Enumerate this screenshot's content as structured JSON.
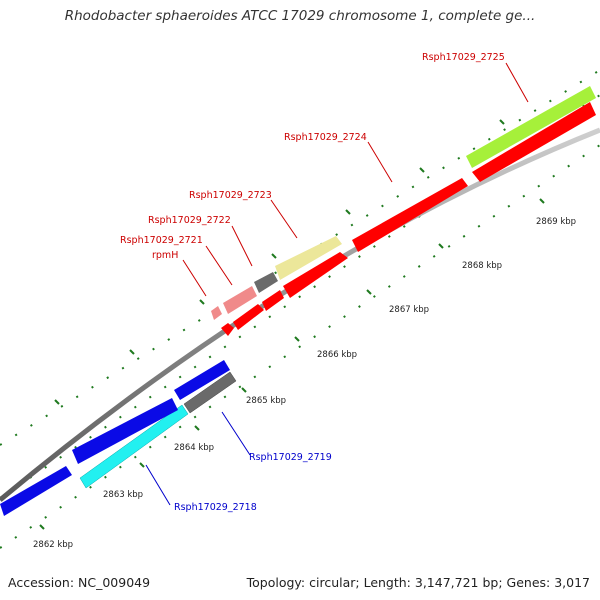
{
  "title": "Rhodobacter sphaeroides ATCC 17029 chromosome 1, complete ge...",
  "footer": {
    "accession": "Accession: NC_009049",
    "stats": "Topology: circular; Length: 3,147,721 bp; Genes: 3,017"
  },
  "kbp_labels": [
    "2862 kbp",
    "2863 kbp",
    "2864 kbp",
    "2865 kbp",
    "2866 kbp",
    "2867 kbp",
    "2868 kbp",
    "2869 kbp"
  ],
  "gene_labels": [
    {
      "text": "Rsph17029_2725",
      "color": "#cc0000"
    },
    {
      "text": "Rsph17029_2724",
      "color": "#cc0000"
    },
    {
      "text": "Rsph17029_2723",
      "color": "#cc0000"
    },
    {
      "text": "Rsph17029_2722",
      "color": "#cc0000"
    },
    {
      "text": "Rsph17029_2721",
      "color": "#cc0000"
    },
    {
      "text": "rpmH",
      "color": "#cc0000"
    },
    {
      "text": "Rsph17029_2719",
      "color": "#0000cc"
    },
    {
      "text": "Rsph17029_2718",
      "color": "#0000cc"
    }
  ],
  "colors": {
    "backbone": "#8c8c8c",
    "tick_green": "#1f7a1f",
    "red": "#ff0000",
    "light_red": "#f08a8a",
    "gray": "#6a6a6a",
    "khaki": "#ece79a",
    "lime": "#a6f03a",
    "blue": "#0a0ae6",
    "cyan": "#22f0f0"
  }
}
